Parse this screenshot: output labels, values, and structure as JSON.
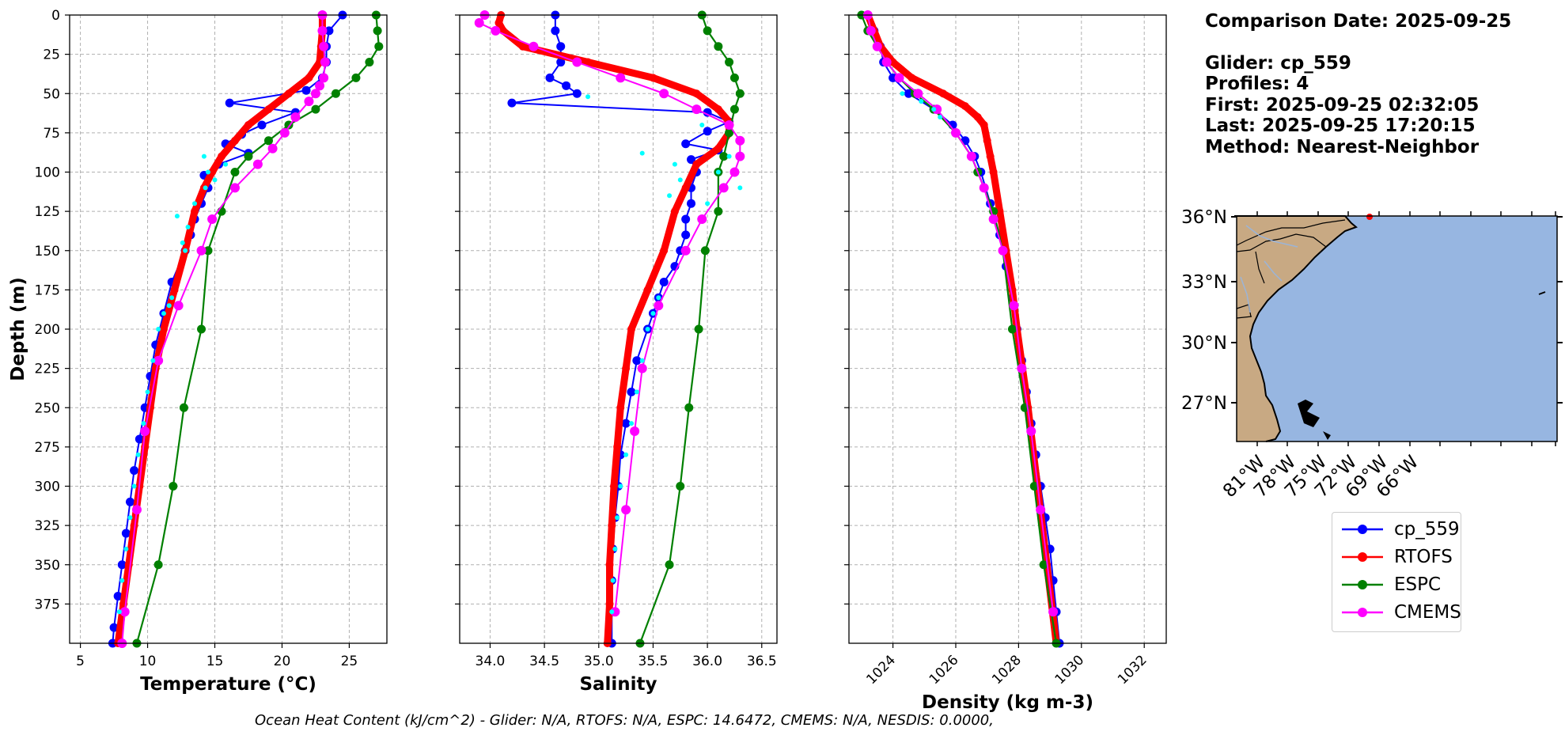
{
  "info": {
    "comparison_date": "Comparison Date: 2025-09-25",
    "glider": "Glider: cp_559",
    "profiles": "Profiles: 4",
    "first": "First: 2025-09-25 02:32:05",
    "last": "Last: 2025-09-25 17:20:15",
    "method": "Method: Nearest-Neighbor"
  },
  "footer": "Ocean Heat Content (kJ/cm^2) - Glider: N/A,  RTOFS: N/A,  ESPC: 14.6472,  CMEMS: N/A,  NESDIS: 0.0000,",
  "legend": [
    {
      "name": "cp_559",
      "color": "#0000ff"
    },
    {
      "name": "RTOFS",
      "color": "#ff0000"
    },
    {
      "name": "ESPC",
      "color": "#008000"
    },
    {
      "name": "CMEMS",
      "color": "#ff00ff"
    }
  ],
  "map": {
    "lat_labels": [
      "36°N",
      "33°N",
      "30°N",
      "27°N"
    ],
    "lon_labels": [
      "81°W",
      "78°W",
      "75°W",
      "72°W",
      "69°W",
      "66°W"
    ],
    "land_color": "#c8a983",
    "ocean_color": "#97b6e1"
  },
  "chart_data": [
    {
      "type": "line",
      "xlabel": "Temperature (°C)",
      "ylabel": "Depth (m)",
      "xlim": [
        4.2,
        27.8
      ],
      "ylim": [
        400,
        0
      ],
      "xticks": [
        "5",
        "10",
        "15",
        "20",
        "25"
      ],
      "yticks": [
        "0",
        "25",
        "50",
        "75",
        "100",
        "125",
        "150",
        "175",
        "200",
        "225",
        "250",
        "275",
        "300",
        "325",
        "350",
        "375"
      ],
      "grid": true,
      "series": [
        {
          "name": "cp_559",
          "depth": [
            0,
            10,
            20,
            30,
            40,
            48,
            56,
            62,
            70,
            76,
            82,
            88,
            95,
            102,
            110,
            120,
            130,
            140,
            150,
            170,
            190,
            210,
            230,
            250,
            270,
            290,
            310,
            330,
            350,
            370,
            390,
            400
          ],
          "values": [
            24.5,
            23.5,
            23.3,
            23.3,
            23.0,
            21.8,
            16.1,
            21.0,
            18.5,
            17.0,
            15.8,
            17.5,
            15.3,
            14.2,
            14.5,
            14.0,
            13.5,
            13.2,
            12.8,
            11.8,
            11.2,
            10.6,
            10.2,
            9.8,
            9.4,
            9.0,
            8.7,
            8.4,
            8.1,
            7.8,
            7.5,
            7.4
          ]
        },
        {
          "name": "RTOFS",
          "depth": [
            0,
            10,
            20,
            30,
            40,
            50,
            60,
            70,
            80,
            90,
            100,
            110,
            125,
            150,
            175,
            200,
            225,
            250,
            275,
            300,
            325,
            350,
            375,
            400
          ],
          "values": [
            23.0,
            23.0,
            22.9,
            22.8,
            22.0,
            20.5,
            19.0,
            17.5,
            16.5,
            15.5,
            14.8,
            14.2,
            13.5,
            12.8,
            12.0,
            11.2,
            10.6,
            10.2,
            9.8,
            9.4,
            9.0,
            8.6,
            8.2,
            7.8
          ]
        },
        {
          "name": "ESPC",
          "depth": [
            0,
            10,
            20,
            30,
            40,
            50,
            60,
            70,
            80,
            90,
            100,
            125,
            150,
            200,
            250,
            300,
            350,
            400
          ],
          "values": [
            27.0,
            27.1,
            27.2,
            26.5,
            25.5,
            24.0,
            22.5,
            20.5,
            19.0,
            17.5,
            16.5,
            15.5,
            14.5,
            14.0,
            12.7,
            11.9,
            10.8,
            9.2
          ]
        },
        {
          "name": "CMEMS",
          "depth": [
            0,
            10,
            20,
            30,
            40,
            45,
            50,
            55,
            65,
            75,
            85,
            95,
            110,
            130,
            150,
            185,
            220,
            265,
            315,
            380,
            400
          ],
          "values": [
            23.0,
            23.0,
            23.1,
            23.2,
            23.1,
            22.8,
            22.5,
            22.0,
            21.0,
            20.2,
            19.3,
            18.2,
            16.5,
            14.8,
            14.0,
            12.3,
            10.8,
            9.8,
            9.2,
            8.3,
            8.1
          ]
        },
        {
          "name": "",
          "depth": [
            90,
            95,
            100,
            105,
            110,
            120,
            128,
            135,
            145,
            150,
            180,
            185,
            190,
            200,
            220,
            240,
            260,
            280,
            300,
            320,
            340,
            360,
            380
          ],
          "values": [
            14.2,
            15.8,
            14.5,
            15.0,
            14.3,
            13.5,
            12.2,
            13.0,
            12.6,
            12.8,
            11.8,
            11.6,
            11.2,
            10.8,
            10.4,
            10.0,
            9.7,
            9.3,
            9.0,
            8.7,
            8.4,
            8.1,
            7.9
          ]
        }
      ]
    },
    {
      "type": "line",
      "xlabel": "Salinity",
      "xlim": [
        33.72,
        36.64
      ],
      "ylim": [
        400,
        0
      ],
      "xticks": [
        "34.0",
        "34.5",
        "35.0",
        "35.5",
        "36.0",
        "36.5"
      ],
      "grid": true,
      "series": [
        {
          "name": "cp_559",
          "depth": [
            0,
            10,
            20,
            30,
            40,
            45,
            50,
            56,
            62,
            68,
            74,
            82,
            86,
            92,
            100,
            110,
            120,
            130,
            140,
            150,
            160,
            170,
            180,
            190,
            200,
            220,
            240,
            260,
            280,
            300,
            320,
            340,
            360,
            380,
            400
          ],
          "values": [
            34.6,
            34.6,
            34.65,
            34.65,
            34.55,
            34.7,
            34.8,
            34.2,
            36.0,
            36.2,
            36.0,
            35.8,
            36.1,
            35.85,
            35.9,
            35.85,
            35.85,
            35.8,
            35.8,
            35.75,
            35.7,
            35.6,
            35.55,
            35.5,
            35.45,
            35.35,
            35.3,
            35.25,
            35.2,
            35.18,
            35.15,
            35.13,
            35.12,
            35.12,
            35.12
          ]
        },
        {
          "name": "RTOFS",
          "depth": [
            0,
            5,
            10,
            20,
            30,
            40,
            50,
            60,
            68,
            75,
            85,
            95,
            110,
            125,
            150,
            175,
            200,
            225,
            250,
            275,
            300,
            325,
            350,
            375,
            400
          ],
          "values": [
            34.1,
            34.08,
            34.12,
            34.3,
            34.9,
            35.5,
            35.9,
            36.1,
            36.2,
            36.2,
            36.1,
            35.9,
            35.8,
            35.7,
            35.6,
            35.45,
            35.3,
            35.25,
            35.2,
            35.17,
            35.14,
            35.12,
            35.1,
            35.1,
            35.08
          ]
        },
        {
          "name": "ESPC",
          "depth": [
            0,
            10,
            20,
            30,
            40,
            50,
            60,
            75,
            90,
            100,
            125,
            150,
            200,
            250,
            300,
            350,
            400
          ],
          "values": [
            35.95,
            36.0,
            36.1,
            36.2,
            36.25,
            36.3,
            36.25,
            36.2,
            36.15,
            36.1,
            36.1,
            35.98,
            35.92,
            35.83,
            35.75,
            35.65,
            35.38
          ]
        },
        {
          "name": "CMEMS",
          "depth": [
            0,
            5,
            10,
            20,
            30,
            40,
            50,
            60,
            70,
            80,
            90,
            100,
            110,
            130,
            150,
            185,
            225,
            265,
            315,
            380
          ],
          "values": [
            33.95,
            33.9,
            34.05,
            34.4,
            34.8,
            35.2,
            35.6,
            35.9,
            36.2,
            36.3,
            36.3,
            36.25,
            36.15,
            35.95,
            35.8,
            35.55,
            35.4,
            35.33,
            35.25,
            35.15
          ]
        },
        {
          "name": "",
          "depth": [
            52,
            70,
            88,
            90,
            95,
            100,
            105,
            110,
            115,
            120,
            180,
            190,
            200,
            220,
            240,
            260,
            280,
            300,
            320,
            340,
            360,
            380
          ],
          "values": [
            34.9,
            35.95,
            35.4,
            36.2,
            35.7,
            36.1,
            35.75,
            36.3,
            35.65,
            36.0,
            35.55,
            35.5,
            35.45,
            35.4,
            35.35,
            35.3,
            35.25,
            35.2,
            35.17,
            35.15,
            35.13,
            35.12
          ]
        }
      ]
    },
    {
      "type": "line",
      "xlabel": "Density (kg m-3)",
      "xlim": [
        1022.6,
        1032.7
      ],
      "ylim": [
        400,
        0
      ],
      "xticks": [
        "1024",
        "1026",
        "1028",
        "1030",
        "1032"
      ],
      "grid": true,
      "series": [
        {
          "name": "cp_559",
          "depth": [
            0,
            10,
            20,
            30,
            40,
            50,
            60,
            70,
            80,
            90,
            100,
            120,
            140,
            160,
            180,
            200,
            220,
            240,
            260,
            280,
            300,
            320,
            340,
            360,
            380,
            400
          ],
          "values": [
            1023.2,
            1023.4,
            1023.6,
            1023.7,
            1024.0,
            1024.5,
            1025.3,
            1025.9,
            1026.3,
            1026.6,
            1026.8,
            1027.1,
            1027.4,
            1027.6,
            1027.8,
            1027.95,
            1028.1,
            1028.25,
            1028.4,
            1028.55,
            1028.7,
            1028.85,
            1029.0,
            1029.1,
            1029.2,
            1029.3
          ]
        },
        {
          "name": "RTOFS",
          "depth": [
            0,
            10,
            20,
            30,
            40,
            50,
            58,
            65,
            70,
            80,
            90,
            100,
            125,
            150,
            175,
            200,
            250,
            300,
            350,
            400
          ],
          "values": [
            1023.2,
            1023.4,
            1023.6,
            1024.0,
            1024.6,
            1025.6,
            1026.3,
            1026.7,
            1026.9,
            1027.0,
            1027.1,
            1027.2,
            1027.4,
            1027.6,
            1027.8,
            1027.95,
            1028.3,
            1028.6,
            1028.9,
            1029.2
          ]
        },
        {
          "name": "ESPC",
          "depth": [
            0,
            10,
            20,
            30,
            40,
            50,
            60,
            75,
            90,
            100,
            125,
            150,
            200,
            250,
            300,
            350,
            400
          ],
          "values": [
            1023.0,
            1023.2,
            1023.5,
            1023.8,
            1024.2,
            1024.7,
            1025.3,
            1026.0,
            1026.5,
            1026.7,
            1027.2,
            1027.5,
            1027.8,
            1028.2,
            1028.5,
            1028.8,
            1029.2
          ]
        },
        {
          "name": "CMEMS",
          "depth": [
            0,
            10,
            20,
            30,
            40,
            50,
            60,
            75,
            90,
            110,
            130,
            150,
            185,
            225,
            265,
            315,
            380
          ],
          "values": [
            1023.2,
            1023.3,
            1023.5,
            1023.8,
            1024.2,
            1024.8,
            1025.4,
            1026.0,
            1026.5,
            1026.9,
            1027.2,
            1027.5,
            1027.85,
            1028.1,
            1028.4,
            1028.7,
            1029.1
          ]
        },
        {
          "name": "",
          "depth": [
            50,
            55,
            60,
            65
          ],
          "values": [
            1024.3,
            1024.9,
            1025.3,
            1025.5
          ]
        }
      ]
    }
  ]
}
